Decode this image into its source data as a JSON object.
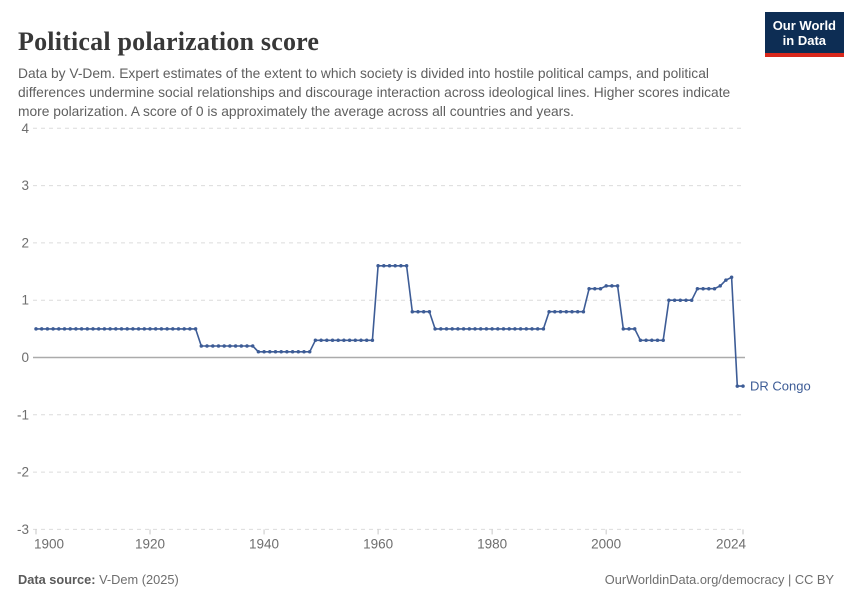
{
  "header": {
    "title": "Political polarization score",
    "subtitle": "Data by V-Dem. Expert estimates of the extent to which society is divided into hostile political camps, and political differences undermine social relationships and discourage interaction across ideological lines. Higher scores indicate more polarization. A score of 0 is approximately the average across all countries and years.",
    "logo": {
      "line1": "Our World",
      "line2": "in Data",
      "bg_color": "#0d2d54",
      "stripe_color": "#d9281c"
    }
  },
  "footer": {
    "source_label": "Data source:",
    "source_value": " V-Dem (2025)",
    "right_text": "OurWorldinData.org/democracy | CC BY"
  },
  "chart_data": {
    "type": "line",
    "title": "Political polarization score",
    "xlabel": "",
    "ylabel": "",
    "xlim": [
      1900,
      2024
    ],
    "ylim": [
      -3,
      4
    ],
    "x_ticks": [
      1900,
      1920,
      1940,
      1960,
      1980,
      2000,
      2024
    ],
    "y_ticks": [
      4,
      3,
      2,
      1,
      0,
      -1,
      -2,
      -3
    ],
    "grid": "horizontal-dashed",
    "legend": "none (entity label at right end of line)",
    "colors": {
      "gridline": "#dcdcdc",
      "zero_line": "#ababab",
      "axis_text": "#6e6e6e",
      "tick_mark": "#c6c6c6"
    },
    "series": [
      {
        "name": "DR Congo",
        "color": "#3d5c96",
        "marker": "circle",
        "yearly_step_segments": [
          {
            "from": 1900,
            "to": 1928,
            "value": 0.5
          },
          {
            "from": 1929,
            "to": 1938,
            "value": 0.2
          },
          {
            "from": 1939,
            "to": 1948,
            "value": 0.1
          },
          {
            "from": 1949,
            "to": 1959,
            "value": 0.3
          },
          {
            "from": 1960,
            "to": 1965,
            "value": 1.6
          },
          {
            "from": 1966,
            "to": 1969,
            "value": 0.8
          },
          {
            "from": 1970,
            "to": 1989,
            "value": 0.5
          },
          {
            "from": 1990,
            "to": 1996,
            "value": 0.8
          },
          {
            "from": 1997,
            "to": 1999,
            "value": 1.2
          },
          {
            "from": 2000,
            "to": 2002,
            "value": 1.25
          },
          {
            "from": 2003,
            "to": 2005,
            "value": 0.5
          },
          {
            "from": 2006,
            "to": 2010,
            "value": 0.3
          },
          {
            "from": 2011,
            "to": 2015,
            "value": 1.0
          },
          {
            "from": 2016,
            "to": 2019,
            "value": 1.2
          },
          {
            "from": 2020,
            "to": 2020,
            "value": 1.25
          },
          {
            "from": 2021,
            "to": 2021,
            "value": 1.35
          },
          {
            "from": 2022,
            "to": 2022,
            "value": 1.4
          },
          {
            "from": 2023,
            "to": 2024,
            "value": -0.5
          }
        ]
      }
    ]
  }
}
